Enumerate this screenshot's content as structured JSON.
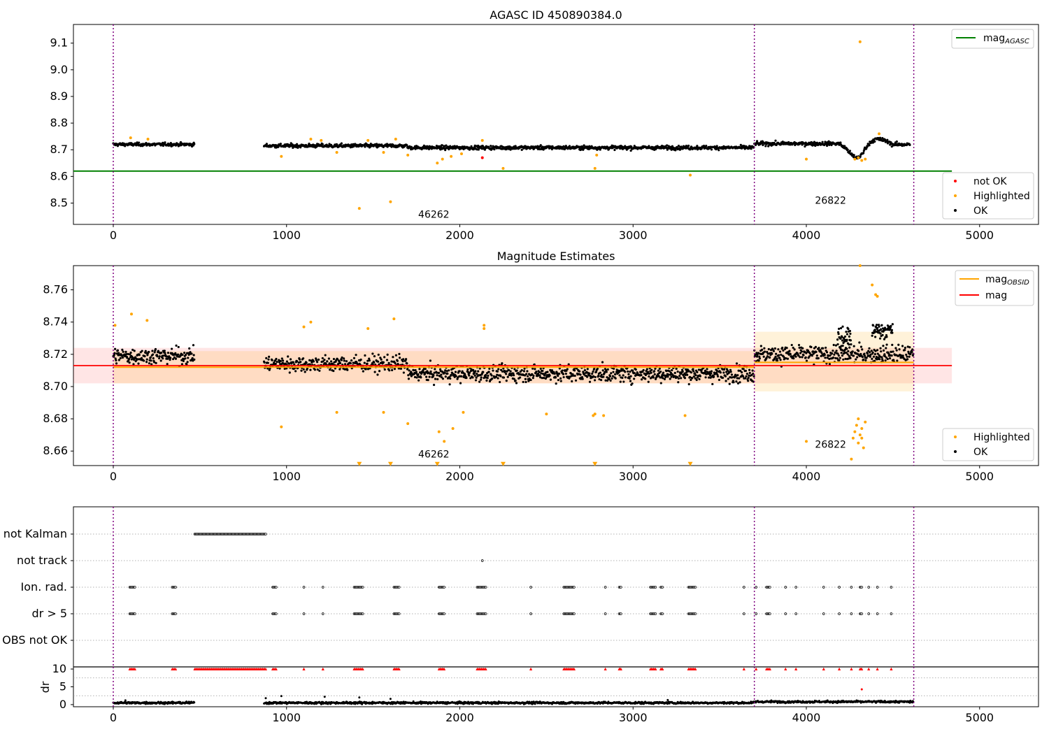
{
  "chart_data": [
    {
      "type": "scatter",
      "title": "AGASC ID 450890384.0",
      "xlim": [
        -230,
        5340
      ],
      "ylim": [
        8.42,
        9.17
      ],
      "x_ticks": [
        0,
        1000,
        2000,
        3000,
        4000,
        5000
      ],
      "y_ticks": [
        8.5,
        8.6,
        8.7,
        8.8,
        8.9,
        9.0,
        9.1
      ],
      "obsid_boundaries": [
        0,
        3700,
        4620
      ],
      "obsid_labels": [
        {
          "text": "46262",
          "x": 1850,
          "y": 8.445
        },
        {
          "text": "26822",
          "x": 4140,
          "y": 8.497
        }
      ],
      "mag_agasc": {
        "value": 8.62,
        "x_range": [
          -230,
          4840
        ],
        "color": "#008000"
      },
      "series": [
        {
          "name": "OK",
          "color": "#000000",
          "level_segments": [
            {
              "x0": 0,
              "x1": 470,
              "y": 8.72,
              "jitter": 0.01
            },
            {
              "x0": 870,
              "x1": 1700,
              "y": 8.715,
              "jitter": 0.012
            },
            {
              "x0": 1700,
              "x1": 3700,
              "y": 8.708,
              "jitter": 0.012
            },
            {
              "x0": 3700,
              "x1": 4200,
              "y": 8.723,
              "jitter": 0.012
            },
            {
              "x0": 4200,
              "x1": 4600,
              "y": 8.72,
              "jitter": 0.012,
              "dip": {
                "x": 4290,
                "depth": 0.05
              }
            }
          ]
        },
        {
          "name": "Highlighted",
          "color": "#ffa500",
          "points": [
            [
              100,
              8.745
            ],
            [
              200,
              8.74
            ],
            [
              970,
              8.675
            ],
            [
              1140,
              8.74
            ],
            [
              1200,
              8.735
            ],
            [
              1290,
              8.69
            ],
            [
              1420,
              8.48
            ],
            [
              1470,
              8.735
            ],
            [
              1560,
              8.69
            ],
            [
              1600,
              8.505
            ],
            [
              1630,
              8.74
            ],
            [
              1700,
              8.68
            ],
            [
              1870,
              8.65
            ],
            [
              1900,
              8.665
            ],
            [
              1950,
              8.675
            ],
            [
              2010,
              8.685
            ],
            [
              2130,
              8.735
            ],
            [
              2250,
              8.63
            ],
            [
              2780,
              8.63
            ],
            [
              2790,
              8.68
            ],
            [
              3330,
              8.605
            ],
            [
              4000,
              8.665
            ],
            [
              4310,
              9.105
            ],
            [
              4420,
              8.76
            ],
            [
              4280,
              8.665
            ],
            [
              4300,
              8.67
            ],
            [
              4320,
              8.66
            ],
            [
              4340,
              8.665
            ]
          ]
        },
        {
          "name": "not OK",
          "color": "#ff0000",
          "points": [
            [
              2130,
              8.67
            ]
          ]
        }
      ],
      "legend_upper": [
        {
          "label": "mag",
          "sub": "AGASC",
          "color": "#008000"
        }
      ],
      "legend_lower": [
        {
          "label": "not OK",
          "color": "#ff0000"
        },
        {
          "label": "Highlighted",
          "color": "#ffa500"
        },
        {
          "label": "OK",
          "color": "#000000"
        }
      ]
    },
    {
      "type": "scatter",
      "title": "Magnitude Estimates",
      "xlim": [
        -230,
        5340
      ],
      "ylim": [
        8.651,
        8.775
      ],
      "x_ticks": [
        0,
        1000,
        2000,
        3000,
        4000,
        5000
      ],
      "y_ticks": [
        8.66,
        8.68,
        8.7,
        8.72,
        8.74,
        8.76
      ],
      "obsid_boundaries": [
        0,
        3700,
        4620
      ],
      "obsid_labels": [
        {
          "text": "46262",
          "x": 1850,
          "y": 8.656
        },
        {
          "text": "26822",
          "x": 4140,
          "y": 8.662
        }
      ],
      "mag": {
        "value": 8.713,
        "band": [
          8.702,
          8.724
        ],
        "x_range": [
          -230,
          4840
        ],
        "color": "#ff0000"
      },
      "mag_obsid": [
        {
          "x0": 0,
          "x1": 3700,
          "value": 8.712,
          "band": [
            8.702,
            8.722
          ]
        },
        {
          "x0": 3700,
          "x1": 4620,
          "value": 8.715,
          "band": [
            8.697,
            8.734
          ]
        }
      ],
      "series": [
        {
          "name": "OK",
          "color": "#000000",
          "level_segments": [
            {
              "x0": 0,
              "x1": 470,
              "y": 8.719,
              "jitter": 0.0085
            },
            {
              "x0": 870,
              "x1": 1700,
              "y": 8.714,
              "jitter": 0.0085
            },
            {
              "x0": 1700,
              "x1": 3700,
              "y": 8.708,
              "jitter": 0.0085
            },
            {
              "x0": 3700,
              "x1": 4200,
              "y": 8.72,
              "jitter": 0.009
            },
            {
              "x0": 4200,
              "x1": 4620,
              "y": 8.72,
              "jitter": 0.009
            }
          ]
        },
        {
          "name": "Highlighted",
          "color": "#ffa500",
          "points": [
            [
              10,
              8.738
            ],
            [
              105,
              8.745
            ],
            [
              195,
              8.741
            ],
            [
              970,
              8.675
            ],
            [
              1100,
              8.737
            ],
            [
              1140,
              8.74
            ],
            [
              1290,
              8.684
            ],
            [
              1470,
              8.736
            ],
            [
              1560,
              8.684
            ],
            [
              1620,
              8.742
            ],
            [
              1700,
              8.677
            ],
            [
              1880,
              8.672
            ],
            [
              1910,
              8.666
            ],
            [
              1960,
              8.674
            ],
            [
              2020,
              8.684
            ],
            [
              2140,
              8.738
            ],
            [
              2140,
              8.736
            ],
            [
              2500,
              8.683
            ],
            [
              2770,
              8.682
            ],
            [
              2780,
              8.683
            ],
            [
              2830,
              8.682
            ],
            [
              3300,
              8.682
            ],
            [
              4000,
              8.666
            ],
            [
              4260,
              8.655
            ],
            [
              4310,
              8.775
            ],
            [
              4380,
              8.763
            ],
            [
              4400,
              8.757
            ],
            [
              4410,
              8.756
            ],
            [
              4270,
              8.668
            ],
            [
              4280,
              8.672
            ],
            [
              4290,
              8.676
            ],
            [
              4300,
              8.665
            ],
            [
              4310,
              8.67
            ],
            [
              4320,
              8.674
            ],
            [
              4330,
              8.662
            ],
            [
              4340,
              8.678
            ],
            [
              4300,
              8.68
            ],
            [
              4320,
              8.668
            ]
          ]
        },
        {
          "name": "Highlighted (off scale)",
          "color": "#ffa500",
          "marker": "triangle",
          "points": [
            [
              1420,
              8.652
            ],
            [
              1600,
              8.652
            ],
            [
              1870,
              8.652
            ],
            [
              2250,
              8.652
            ],
            [
              2780,
              8.652
            ],
            [
              3330,
              8.652
            ]
          ]
        }
      ],
      "legend_upper": [
        {
          "label": "mag",
          "sub": "OBSID",
          "color": "#ffa500"
        },
        {
          "label": "mag",
          "sub": "",
          "color": "#ff0000"
        }
      ],
      "legend_lower": [
        {
          "label": "Highlighted",
          "color": "#ffa500"
        },
        {
          "label": "OK",
          "color": "#000000"
        }
      ]
    },
    {
      "type": "scatter",
      "title": "",
      "xlim": [
        -230,
        5340
      ],
      "categories": [
        "not Kalman",
        "not track",
        "Ion. rad.",
        "dr > 5",
        "OBS not OK"
      ],
      "obsid_boundaries": [
        0,
        3700,
        4620
      ],
      "flag_events": {
        "not Kalman": [
          [
            470,
            880
          ]
        ],
        "not track": [
          [
            2130,
            2130
          ]
        ],
        "Ion. rad.": [
          [
            95,
            125
          ],
          [
            340,
            360
          ],
          [
            920,
            940
          ],
          [
            1100,
            1100
          ],
          [
            1210,
            1210
          ],
          [
            1390,
            1440
          ],
          [
            1620,
            1650
          ],
          [
            1880,
            1910
          ],
          [
            2100,
            2150
          ],
          [
            2410,
            2410
          ],
          [
            2600,
            2660
          ],
          [
            2840,
            2840
          ],
          [
            2920,
            2930
          ],
          [
            3100,
            3130
          ],
          [
            3160,
            3170
          ],
          [
            3320,
            3360
          ],
          [
            3640,
            3640
          ],
          [
            3710,
            3710
          ],
          [
            3770,
            3790
          ],
          [
            3880,
            3880
          ],
          [
            3940,
            3940
          ],
          [
            4100,
            4100
          ],
          [
            4190,
            4190
          ],
          [
            4260,
            4260
          ],
          [
            4310,
            4320
          ],
          [
            4360,
            4360
          ],
          [
            4410,
            4410
          ],
          [
            4490,
            4490
          ]
        ],
        "dr > 5": [
          [
            95,
            125
          ],
          [
            340,
            360
          ],
          [
            920,
            940
          ],
          [
            1100,
            1100
          ],
          [
            1210,
            1210
          ],
          [
            1390,
            1440
          ],
          [
            1620,
            1650
          ],
          [
            1880,
            1910
          ],
          [
            2100,
            2150
          ],
          [
            2410,
            2410
          ],
          [
            2600,
            2660
          ],
          [
            2840,
            2840
          ],
          [
            2920,
            2930
          ],
          [
            3100,
            3130
          ],
          [
            3160,
            3170
          ],
          [
            3320,
            3360
          ],
          [
            3640,
            3640
          ],
          [
            3710,
            3710
          ],
          [
            3770,
            3790
          ],
          [
            3880,
            3880
          ],
          [
            3940,
            3940
          ],
          [
            4100,
            4100
          ],
          [
            4190,
            4190
          ],
          [
            4260,
            4260
          ],
          [
            4310,
            4320
          ],
          [
            4360,
            4360
          ],
          [
            4410,
            4410
          ],
          [
            4490,
            4490
          ]
        ],
        "OBS not OK": []
      }
    },
    {
      "type": "scatter",
      "title": "",
      "ylabel": "dr",
      "xlim": [
        -230,
        5340
      ],
      "ylim": [
        -0.6,
        10.6
      ],
      "x_ticks": [
        0,
        1000,
        2000,
        3000,
        4000,
        5000
      ],
      "y_ticks": [
        0,
        5,
        10
      ],
      "obsid_boundaries": [
        0,
        3700,
        4620
      ],
      "dr_segments": [
        {
          "x0": 0,
          "x1": 470,
          "y": 0.5
        },
        {
          "x0": 870,
          "x1": 3700,
          "y": 0.5
        },
        {
          "x0": 3700,
          "x1": 4620,
          "y": 0.8
        }
      ],
      "dr_outliers": [
        [
          70,
          1.2
        ],
        [
          880,
          1.8
        ],
        [
          970,
          2.4
        ],
        [
          1220,
          2.2
        ],
        [
          1420,
          2.0
        ],
        [
          1600,
          1.6
        ],
        [
          3200,
          1.3
        ],
        [
          4320,
          4.3
        ]
      ],
      "clipped_markers": {
        "y": 10,
        "color": "#ff0000",
        "ranges": [
          [
            95,
            125
          ],
          [
            340,
            360
          ],
          [
            470,
            880
          ],
          [
            920,
            940
          ],
          [
            1100,
            1100
          ],
          [
            1210,
            1210
          ],
          [
            1390,
            1440
          ],
          [
            1620,
            1650
          ],
          [
            1880,
            1910
          ],
          [
            2100,
            2150
          ],
          [
            2410,
            2410
          ],
          [
            2600,
            2660
          ],
          [
            2840,
            2840
          ],
          [
            2920,
            2930
          ],
          [
            3100,
            3130
          ],
          [
            3160,
            3170
          ],
          [
            3320,
            3360
          ],
          [
            3640,
            3640
          ],
          [
            3710,
            3710
          ],
          [
            3770,
            3790
          ],
          [
            3880,
            3880
          ],
          [
            3940,
            3940
          ],
          [
            4100,
            4100
          ],
          [
            4190,
            4190
          ],
          [
            4260,
            4260
          ],
          [
            4310,
            4320
          ],
          [
            4360,
            4360
          ],
          [
            4410,
            4410
          ],
          [
            4490,
            4490
          ]
        ]
      }
    }
  ]
}
